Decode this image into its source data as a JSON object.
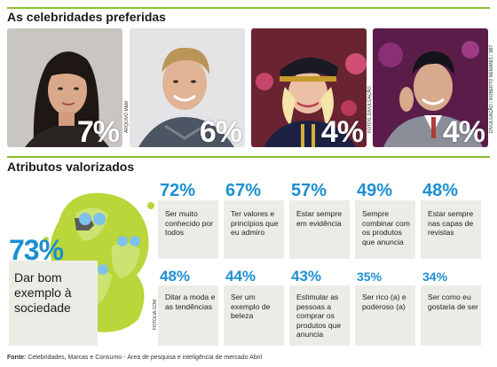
{
  "section1": {
    "title": "As celebridades preferidas",
    "celebrities": [
      {
        "percent": "7%"
      },
      {
        "percent": "6%"
      },
      {
        "percent": "4%"
      },
      {
        "percent": "4%"
      }
    ],
    "credits": [
      "ARQUIVO M&M",
      "FOTOS: DIVULGAÇÃO",
      "DIVULGAÇÃO / ROBERTO NEMANIS / SBT"
    ]
  },
  "section2": {
    "title": "Atributos valorizados",
    "highlight": {
      "percent": "73%",
      "label": "Dar bom exemplo à sociedade"
    },
    "illustration_credit": "FOTOLIA.COM",
    "attributes": [
      {
        "percent": "72%",
        "label": "Ser muito conhecido por todos"
      },
      {
        "percent": "67%",
        "label": "Ter valores e princípios que eu admiro"
      },
      {
        "percent": "57%",
        "label": "Estar sempre em evidência"
      },
      {
        "percent": "49%",
        "label": "Sempre combinar com os produtos que anuncia"
      },
      {
        "percent": "48%",
        "label": "Estar sempre nas capas de revistas"
      },
      {
        "percent": "48%",
        "label": "Ditar a moda e as tendências"
      },
      {
        "percent": "44%",
        "label": "Ser um exemplo de beleza"
      },
      {
        "percent": "43%",
        "label": "Estimular as pessoas a comprar os produtos que anuncia"
      },
      {
        "percent": "35%",
        "label": "Ser rico (a) e poderoso (a)"
      },
      {
        "percent": "34%",
        "label": "Ser como eu gostaria de ser"
      }
    ]
  },
  "footer": {
    "label": "Fonte:",
    "text": "Celebridades, Marcas e Consumo - Área de pesquisa e inteligência de mercado Abril"
  },
  "colors": {
    "accent_green": "#8dbf2e",
    "accent_blue": "#1c8fd1",
    "card_bg": "#ecece7"
  }
}
